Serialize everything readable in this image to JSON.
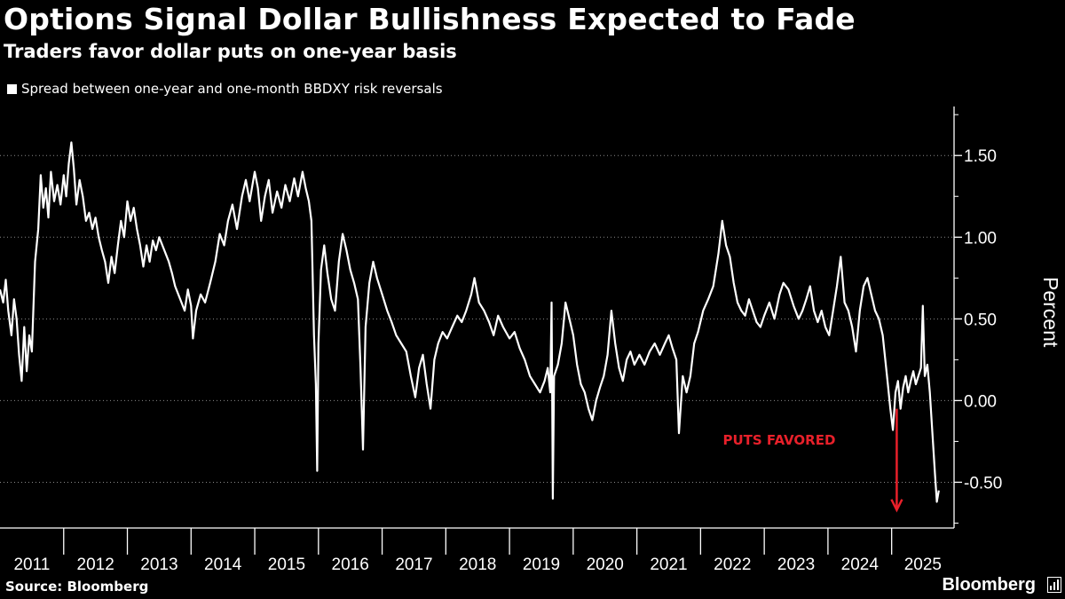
{
  "header": {
    "title": "Options Signal Dollar Bullishness Expected to Fade",
    "subtitle": "Traders favor dollar puts on one-year basis"
  },
  "footer": {
    "source": "Source: Bloomberg",
    "brand": "Bloomberg"
  },
  "colors": {
    "background": "#000000",
    "line": "#ffffff",
    "annotation": "#e8202a"
  },
  "chart_data": {
    "type": "line",
    "title": "Options Signal Dollar Bullishness Expected to Fade",
    "subtitle": "Traders favor dollar puts on one-year basis",
    "xlabel": "",
    "ylabel": "Percent",
    "ylim": [
      -0.78,
      1.8
    ],
    "yticks": [
      {
        "value": 1.5,
        "label": "1.50"
      },
      {
        "value": 1.0,
        "label": "1.00"
      },
      {
        "value": 0.5,
        "label": "0.50"
      },
      {
        "value": 0.0,
        "label": "0.00"
      },
      {
        "value": -0.5,
        "label": "-0.50"
      }
    ],
    "xlim": [
      2011.0,
      2025.98
    ],
    "xticks": [
      "2011",
      "2012",
      "2013",
      "2014",
      "2015",
      "2016",
      "2017",
      "2018",
      "2019",
      "2020",
      "2021",
      "2022",
      "2023",
      "2024",
      "2025"
    ],
    "grid": "horizontal dotted",
    "legend": "top-left",
    "series": [
      {
        "name": "Spread between one-year and one-month BBDXY risk reversals",
        "points": [
          [
            2011.0,
            0.68
          ],
          [
            2011.05,
            0.6
          ],
          [
            2011.09,
            0.74
          ],
          [
            2011.13,
            0.55
          ],
          [
            2011.18,
            0.4
          ],
          [
            2011.22,
            0.62
          ],
          [
            2011.26,
            0.5
          ],
          [
            2011.3,
            0.28
          ],
          [
            2011.34,
            0.12
          ],
          [
            2011.38,
            0.45
          ],
          [
            2011.42,
            0.18
          ],
          [
            2011.46,
            0.4
          ],
          [
            2011.5,
            0.3
          ],
          [
            2011.55,
            0.85
          ],
          [
            2011.6,
            1.05
          ],
          [
            2011.64,
            1.38
          ],
          [
            2011.68,
            1.18
          ],
          [
            2011.72,
            1.3
          ],
          [
            2011.76,
            1.12
          ],
          [
            2011.8,
            1.4
          ],
          [
            2011.85,
            1.22
          ],
          [
            2011.9,
            1.32
          ],
          [
            2011.95,
            1.2
          ],
          [
            2012.0,
            1.38
          ],
          [
            2012.04,
            1.25
          ],
          [
            2012.08,
            1.45
          ],
          [
            2012.12,
            1.58
          ],
          [
            2012.16,
            1.42
          ],
          [
            2012.2,
            1.2
          ],
          [
            2012.25,
            1.35
          ],
          [
            2012.3,
            1.25
          ],
          [
            2012.35,
            1.1
          ],
          [
            2012.4,
            1.15
          ],
          [
            2012.45,
            1.05
          ],
          [
            2012.5,
            1.12
          ],
          [
            2012.55,
            1.0
          ],
          [
            2012.6,
            0.92
          ],
          [
            2012.65,
            0.85
          ],
          [
            2012.7,
            0.72
          ],
          [
            2012.75,
            0.88
          ],
          [
            2012.8,
            0.78
          ],
          [
            2012.85,
            0.95
          ],
          [
            2012.9,
            1.1
          ],
          [
            2012.95,
            1.0
          ],
          [
            2013.0,
            1.22
          ],
          [
            2013.05,
            1.1
          ],
          [
            2013.1,
            1.18
          ],
          [
            2013.15,
            1.05
          ],
          [
            2013.2,
            0.95
          ],
          [
            2013.25,
            0.82
          ],
          [
            2013.3,
            0.95
          ],
          [
            2013.35,
            0.85
          ],
          [
            2013.4,
            0.98
          ],
          [
            2013.45,
            0.92
          ],
          [
            2013.5,
            1.0
          ],
          [
            2013.55,
            0.95
          ],
          [
            2013.6,
            0.9
          ],
          [
            2013.65,
            0.85
          ],
          [
            2013.7,
            0.78
          ],
          [
            2013.75,
            0.7
          ],
          [
            2013.8,
            0.65
          ],
          [
            2013.85,
            0.6
          ],
          [
            2013.9,
            0.55
          ],
          [
            2013.95,
            0.68
          ],
          [
            2014.0,
            0.58
          ],
          [
            2014.03,
            0.38
          ],
          [
            2014.08,
            0.55
          ],
          [
            2014.15,
            0.65
          ],
          [
            2014.22,
            0.6
          ],
          [
            2014.3,
            0.72
          ],
          [
            2014.38,
            0.85
          ],
          [
            2014.45,
            1.02
          ],
          [
            2014.52,
            0.95
          ],
          [
            2014.58,
            1.1
          ],
          [
            2014.65,
            1.2
          ],
          [
            2014.72,
            1.05
          ],
          [
            2014.8,
            1.25
          ],
          [
            2014.86,
            1.35
          ],
          [
            2014.92,
            1.22
          ],
          [
            2015.0,
            1.4
          ],
          [
            2015.05,
            1.3
          ],
          [
            2015.1,
            1.1
          ],
          [
            2015.16,
            1.25
          ],
          [
            2015.22,
            1.35
          ],
          [
            2015.28,
            1.15
          ],
          [
            2015.35,
            1.28
          ],
          [
            2015.42,
            1.18
          ],
          [
            2015.48,
            1.32
          ],
          [
            2015.55,
            1.22
          ],
          [
            2015.62,
            1.36
          ],
          [
            2015.68,
            1.25
          ],
          [
            2015.75,
            1.4
          ],
          [
            2015.8,
            1.3
          ],
          [
            2015.85,
            1.22
          ],
          [
            2015.89,
            1.1
          ],
          [
            2015.93,
            0.4
          ],
          [
            2015.96,
            0.1
          ],
          [
            2015.98,
            -0.43
          ],
          [
            2016.0,
            0.35
          ],
          [
            2016.04,
            0.8
          ],
          [
            2016.09,
            0.95
          ],
          [
            2016.14,
            0.78
          ],
          [
            2016.2,
            0.62
          ],
          [
            2016.26,
            0.55
          ],
          [
            2016.32,
            0.85
          ],
          [
            2016.38,
            1.02
          ],
          [
            2016.44,
            0.92
          ],
          [
            2016.5,
            0.8
          ],
          [
            2016.56,
            0.72
          ],
          [
            2016.62,
            0.62
          ],
          [
            2016.66,
            0.2
          ],
          [
            2016.7,
            -0.3
          ],
          [
            2016.74,
            0.45
          ],
          [
            2016.8,
            0.72
          ],
          [
            2016.86,
            0.85
          ],
          [
            2016.92,
            0.75
          ],
          [
            2017.0,
            0.65
          ],
          [
            2017.08,
            0.55
          ],
          [
            2017.15,
            0.48
          ],
          [
            2017.22,
            0.4
          ],
          [
            2017.3,
            0.35
          ],
          [
            2017.38,
            0.3
          ],
          [
            2017.45,
            0.15
          ],
          [
            2017.52,
            0.02
          ],
          [
            2017.58,
            0.2
          ],
          [
            2017.64,
            0.28
          ],
          [
            2017.7,
            0.1
          ],
          [
            2017.76,
            -0.05
          ],
          [
            2017.82,
            0.25
          ],
          [
            2017.88,
            0.35
          ],
          [
            2017.95,
            0.42
          ],
          [
            2018.02,
            0.38
          ],
          [
            2018.1,
            0.45
          ],
          [
            2018.18,
            0.52
          ],
          [
            2018.25,
            0.48
          ],
          [
            2018.32,
            0.55
          ],
          [
            2018.4,
            0.65
          ],
          [
            2018.45,
            0.75
          ],
          [
            2018.52,
            0.6
          ],
          [
            2018.6,
            0.55
          ],
          [
            2018.68,
            0.48
          ],
          [
            2018.75,
            0.4
          ],
          [
            2018.82,
            0.52
          ],
          [
            2018.9,
            0.45
          ],
          [
            2019.0,
            0.38
          ],
          [
            2019.08,
            0.42
          ],
          [
            2019.16,
            0.32
          ],
          [
            2019.24,
            0.25
          ],
          [
            2019.32,
            0.15
          ],
          [
            2019.4,
            0.1
          ],
          [
            2019.48,
            0.05
          ],
          [
            2019.55,
            0.12
          ],
          [
            2019.6,
            0.2
          ],
          [
            2019.64,
            0.05
          ],
          [
            2019.66,
            0.6
          ],
          [
            2019.68,
            -0.6
          ],
          [
            2019.7,
            0.15
          ],
          [
            2019.76,
            0.22
          ],
          [
            2019.82,
            0.35
          ],
          [
            2019.88,
            0.6
          ],
          [
            2019.94,
            0.5
          ],
          [
            2020.0,
            0.4
          ],
          [
            2020.06,
            0.22
          ],
          [
            2020.12,
            0.1
          ],
          [
            2020.18,
            0.05
          ],
          [
            2020.24,
            -0.05
          ],
          [
            2020.3,
            -0.12
          ],
          [
            2020.36,
            0.0
          ],
          [
            2020.42,
            0.08
          ],
          [
            2020.48,
            0.15
          ],
          [
            2020.54,
            0.28
          ],
          [
            2020.6,
            0.55
          ],
          [
            2020.66,
            0.35
          ],
          [
            2020.72,
            0.2
          ],
          [
            2020.78,
            0.12
          ],
          [
            2020.84,
            0.25
          ],
          [
            2020.9,
            0.3
          ],
          [
            2020.96,
            0.22
          ],
          [
            2021.04,
            0.28
          ],
          [
            2021.12,
            0.22
          ],
          [
            2021.2,
            0.3
          ],
          [
            2021.28,
            0.35
          ],
          [
            2021.36,
            0.28
          ],
          [
            2021.44,
            0.35
          ],
          [
            2021.5,
            0.4
          ],
          [
            2021.56,
            0.32
          ],
          [
            2021.62,
            0.25
          ],
          [
            2021.66,
            -0.2
          ],
          [
            2021.72,
            0.15
          ],
          [
            2021.78,
            0.05
          ],
          [
            2021.84,
            0.15
          ],
          [
            2021.9,
            0.35
          ],
          [
            2021.96,
            0.42
          ],
          [
            2022.04,
            0.55
          ],
          [
            2022.12,
            0.62
          ],
          [
            2022.2,
            0.7
          ],
          [
            2022.28,
            0.9
          ],
          [
            2022.34,
            1.1
          ],
          [
            2022.4,
            0.95
          ],
          [
            2022.46,
            0.88
          ],
          [
            2022.52,
            0.72
          ],
          [
            2022.58,
            0.6
          ],
          [
            2022.64,
            0.55
          ],
          [
            2022.7,
            0.52
          ],
          [
            2022.76,
            0.62
          ],
          [
            2022.82,
            0.55
          ],
          [
            2022.88,
            0.48
          ],
          [
            2022.94,
            0.45
          ],
          [
            2023.0,
            0.52
          ],
          [
            2023.08,
            0.6
          ],
          [
            2023.16,
            0.5
          ],
          [
            2023.24,
            0.65
          ],
          [
            2023.3,
            0.72
          ],
          [
            2023.38,
            0.68
          ],
          [
            2023.46,
            0.58
          ],
          [
            2023.54,
            0.5
          ],
          [
            2023.6,
            0.55
          ],
          [
            2023.66,
            0.62
          ],
          [
            2023.72,
            0.7
          ],
          [
            2023.78,
            0.55
          ],
          [
            2023.84,
            0.48
          ],
          [
            2023.9,
            0.55
          ],
          [
            2023.96,
            0.45
          ],
          [
            2024.02,
            0.4
          ],
          [
            2024.08,
            0.55
          ],
          [
            2024.14,
            0.7
          ],
          [
            2024.2,
            0.88
          ],
          [
            2024.26,
            0.6
          ],
          [
            2024.32,
            0.55
          ],
          [
            2024.38,
            0.45
          ],
          [
            2024.44,
            0.3
          ],
          [
            2024.5,
            0.55
          ],
          [
            2024.56,
            0.7
          ],
          [
            2024.62,
            0.75
          ],
          [
            2024.68,
            0.65
          ],
          [
            2024.74,
            0.55
          ],
          [
            2024.8,
            0.5
          ],
          [
            2024.86,
            0.4
          ],
          [
            2024.9,
            0.25
          ],
          [
            2024.94,
            0.1
          ],
          [
            2024.98,
            -0.05
          ],
          [
            2025.02,
            -0.18
          ],
          [
            2025.06,
            0.05
          ],
          [
            2025.1,
            0.12
          ],
          [
            2025.14,
            -0.05
          ],
          [
            2025.18,
            0.08
          ],
          [
            2025.22,
            0.15
          ],
          [
            2025.26,
            0.05
          ],
          [
            2025.3,
            0.12
          ],
          [
            2025.34,
            0.18
          ],
          [
            2025.38,
            0.1
          ],
          [
            2025.42,
            0.15
          ],
          [
            2025.46,
            0.2
          ],
          [
            2025.49,
            0.58
          ],
          [
            2025.52,
            0.15
          ],
          [
            2025.56,
            0.22
          ],
          [
            2025.6,
            0.05
          ],
          [
            2025.64,
            -0.2
          ],
          [
            2025.68,
            -0.45
          ],
          [
            2025.71,
            -0.62
          ],
          [
            2025.74,
            -0.55
          ]
        ]
      }
    ],
    "annotations": [
      {
        "text": "PUTS FAVORED",
        "x": 2022.35,
        "y": -0.27,
        "arrow_x": 2025.08,
        "arrow_from_y": -0.05,
        "arrow_to_y": -0.67
      }
    ]
  }
}
